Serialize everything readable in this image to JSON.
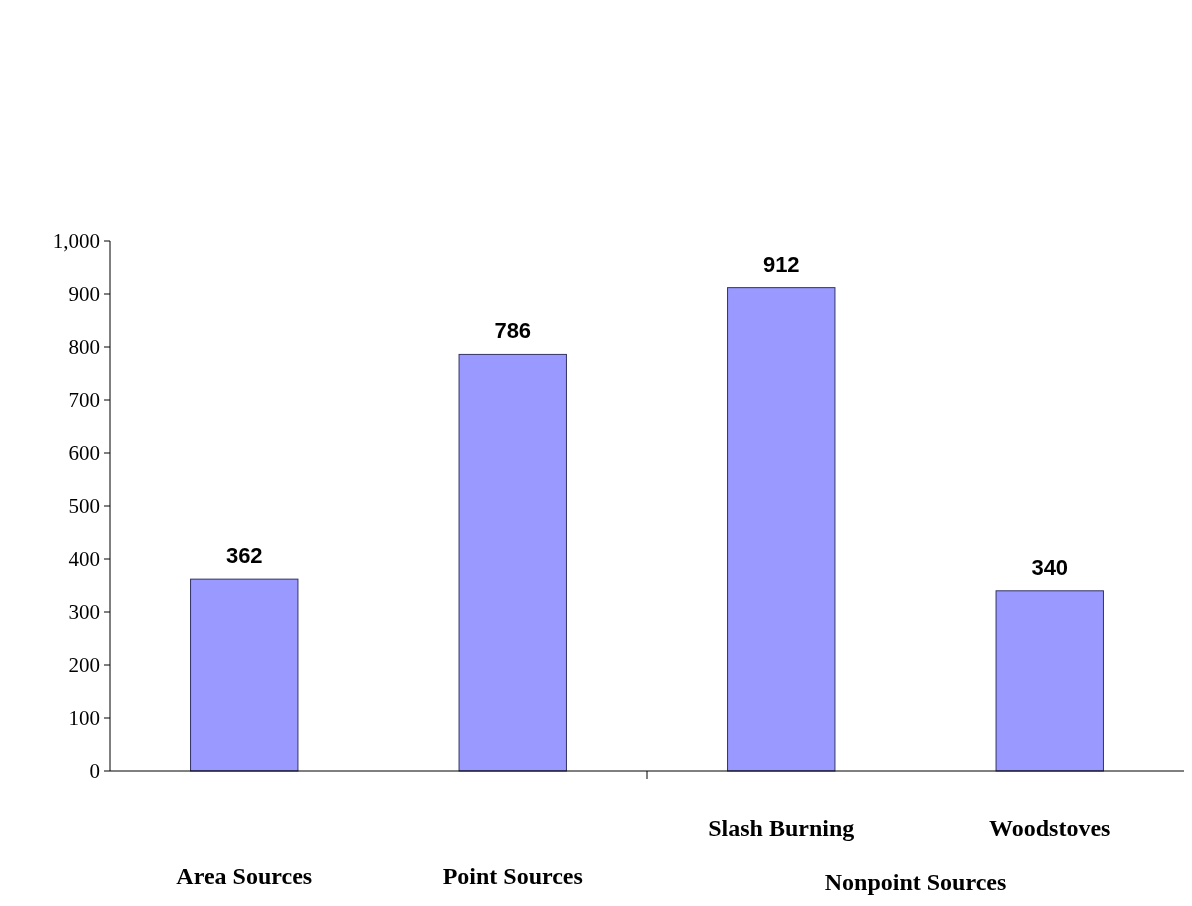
{
  "chart_data": {
    "type": "bar",
    "categories": [
      "Area Sources",
      "Point Sources",
      "Slash Burning",
      "Woodstoves"
    ],
    "values": [
      362,
      786,
      912,
      340
    ],
    "color": "#9999ff",
    "data_labels": true,
    "ylim": [
      0,
      1000
    ],
    "yticks": [
      0,
      100,
      200,
      300,
      400,
      500,
      600,
      700,
      800,
      900,
      {
        "value": 1000,
        "label": "1,000"
      }
    ],
    "annotations": [
      "Nonpoint Sources"
    ]
  }
}
